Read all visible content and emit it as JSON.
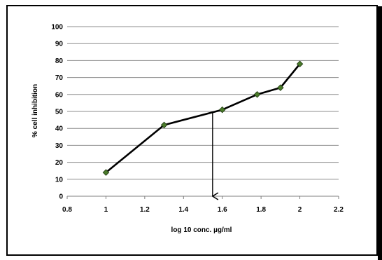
{
  "chart_data": {
    "type": "line",
    "title": "",
    "xlabel": "log 10 conc. µg/ml",
    "ylabel": "% cell inhibition",
    "xlim": [
      0.8,
      2.2
    ],
    "ylim": [
      0,
      100
    ],
    "x_ticks": [
      "0.8",
      "1",
      "1.2",
      "1.4",
      "1.6",
      "1.8",
      "2",
      "2.2"
    ],
    "y_ticks": [
      "0",
      "10",
      "20",
      "30",
      "40",
      "50",
      "60",
      "70",
      "80",
      "90",
      "100"
    ],
    "grid": "horizontal",
    "legend": "none",
    "series": [
      {
        "x": [
          1.0,
          1.3,
          1.6,
          1.78,
          1.9,
          2.0
        ],
        "y": [
          14,
          42,
          51,
          60,
          64,
          78
        ],
        "color": "#000000",
        "marker": "diamond",
        "marker_color": "#4a7a2a"
      }
    ],
    "annotation": {
      "type": "arrow-down",
      "x": 1.55,
      "y_from": 50,
      "y_to": 0
    }
  }
}
